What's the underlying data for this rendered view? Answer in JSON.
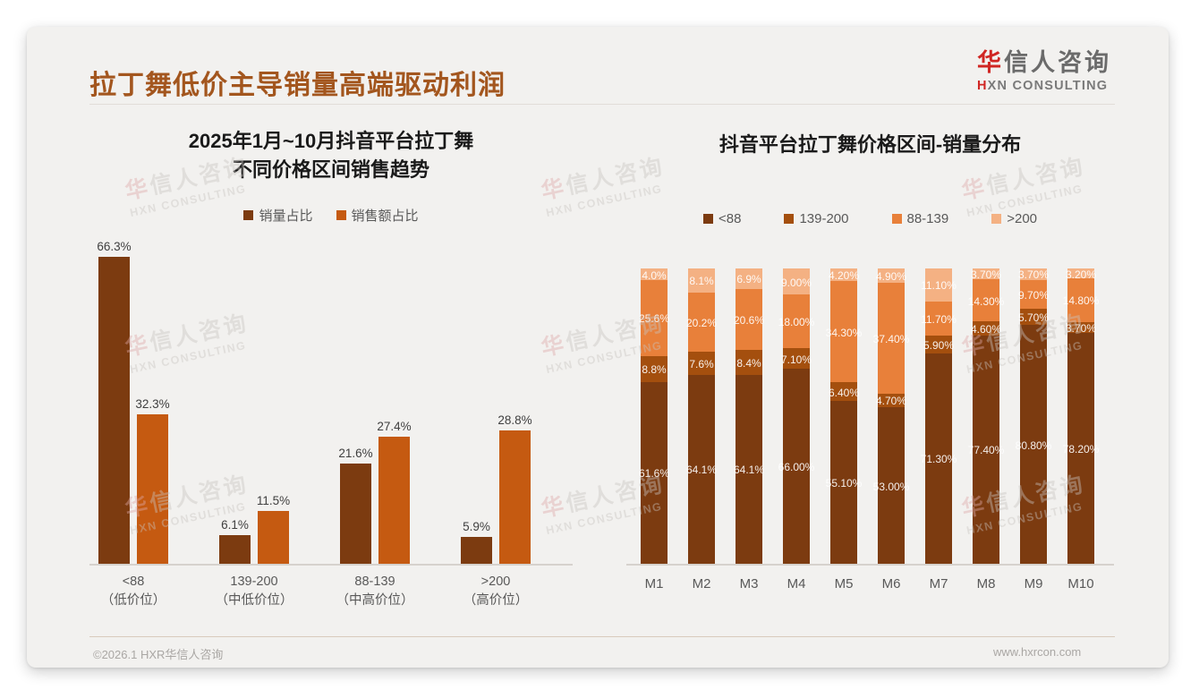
{
  "header": {
    "title": "拉丁舞低价主导销量高端驱动利润",
    "logo": {
      "cn_highlight": "华",
      "cn_rest": "信人咨询",
      "en_highlight": "H",
      "en_rest": "XN CONSULTING"
    }
  },
  "watermark": {
    "cn_highlight": "华",
    "cn_rest": "信人咨询",
    "en": "HXN CONSULTING"
  },
  "footer": {
    "left": "©2026.1 HXR华信人咨询",
    "right": "www.hxrcon.com"
  },
  "colors": {
    "title_brown": "#a3561e",
    "logo_red": "#d02623",
    "dark_brown": "#7c3b10",
    "mid_brown": "#a44f0e",
    "orange": "#e8803a",
    "left_orange": "#c55a11",
    "light_peach": "#f4b183",
    "axis_text": "#595959",
    "card_background": "#f2f1ef"
  },
  "chart_data": [
    {
      "type": "bar",
      "title_lines": [
        "2025年1月~10月抖音平台拉丁舞",
        "不同价格区间销售趋势"
      ],
      "categories": [
        "<88",
        "139-200",
        "88-139",
        ">200"
      ],
      "category_sublabels": [
        "（低价位）",
        "（中低价位）",
        "（中高价位）",
        "（高价位）"
      ],
      "ylim": [
        0,
        70
      ],
      "grid": false,
      "legend_position": "top",
      "series": [
        {
          "name": "销量占比",
          "color": "#7c3b10",
          "values": [
            66.3,
            6.1,
            21.6,
            5.9
          ],
          "labels": [
            "66.3%",
            "6.1%",
            "21.6%",
            "5.9%"
          ]
        },
        {
          "name": "销售额占比",
          "color": "#c55a11",
          "values": [
            32.3,
            11.5,
            27.4,
            28.8
          ],
          "labels": [
            "32.3%",
            "11.5%",
            "27.4%",
            "28.8%"
          ]
        }
      ]
    },
    {
      "type": "stacked-bar",
      "title": "抖音平台拉丁舞价格区间-销量分布",
      "categories": [
        "M1",
        "M2",
        "M3",
        "M4",
        "M5",
        "M6",
        "M7",
        "M8",
        "M9",
        "M10"
      ],
      "ylim": [
        0,
        100
      ],
      "grid": false,
      "legend_position": "top",
      "series": [
        {
          "name": "<88",
          "color": "#7c3b10",
          "values": [
            61.6,
            64.1,
            64.1,
            66.0,
            55.1,
            53.0,
            71.3,
            77.4,
            80.8,
            78.2
          ],
          "labels": [
            "61.6%",
            "64.1%",
            "64.1%",
            "66.00%",
            "55.10%",
            "53.00%",
            "71.30%",
            "77.40%",
            "80.80%",
            "78.20%"
          ]
        },
        {
          "name": "139-200",
          "color": "#a44f0e",
          "values": [
            8.8,
            7.6,
            8.4,
            7.1,
            6.4,
            4.7,
            5.9,
            4.6,
            5.7,
            3.7
          ],
          "labels": [
            "8.8%",
            "7.6%",
            "8.4%",
            "7.10%",
            "6.40%",
            "4.70%",
            "5.90%",
            "4.60%",
            "5.70%",
            "3.70%"
          ]
        },
        {
          "name": "88-139",
          "color": "#e8803a",
          "values": [
            25.6,
            20.2,
            20.6,
            18.0,
            34.3,
            37.4,
            11.7,
            14.3,
            9.7,
            14.8
          ],
          "labels": [
            "25.6%",
            "20.2%",
            "20.6%",
            "18.00%",
            "34.30%",
            "37.40%",
            "11.70%",
            "14.30%",
            "9.70%",
            "14.80%"
          ]
        },
        {
          "name": ">200",
          "color": "#f4b183",
          "values": [
            4.0,
            8.1,
            6.9,
            9.0,
            4.2,
            4.9,
            11.1,
            3.7,
            3.7,
            3.2
          ],
          "labels": [
            "4.0%",
            "8.1%",
            "6.9%",
            "9.00%",
            "4.20%",
            "4.90%",
            "11.10%",
            "3.70%",
            "3.70%",
            "3.20%"
          ]
        }
      ]
    }
  ]
}
